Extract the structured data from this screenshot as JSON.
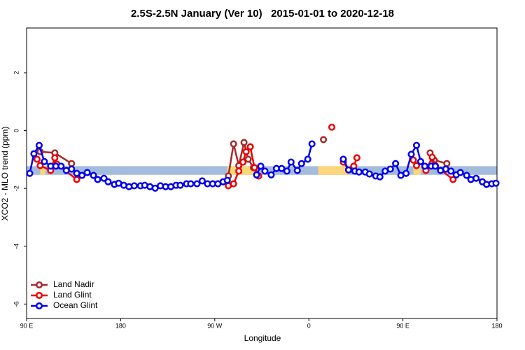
{
  "chart_data": {
    "type": "line",
    "title": "2.5S-2.5N January (Ver 10)   2015-01-01 to 2020-12-18",
    "x_label": "Longitude",
    "y_label": "XCO2 - MLO trend (ppm)",
    "xlim": [
      90,
      540
    ],
    "ylim": [
      -6.5,
      3.55
    ],
    "xticks": [
      {
        "value": 90,
        "label": "90 E"
      },
      180,
      {
        "value": 270,
        "label": "90 W"
      },
      {
        "value": 360,
        "label": "0"
      },
      {
        "value": 450,
        "label": "90 E"
      },
      {
        "value": 540,
        "label": "180"
      }
    ],
    "yticks": [
      2,
      0,
      -2,
      -4,
      -6
    ],
    "legend": "bottom-left",
    "bands": [
      {
        "color": "#a3bcdc",
        "ylim": [
          -1.53,
          -1.23
        ],
        "xlim": [
          90,
          540
        ]
      },
      {
        "color": "#fcd67a",
        "ylim": [
          -1.53,
          -1.23
        ],
        "xlim": [
          103,
          108
        ]
      },
      {
        "color": "#fcd67a",
        "ylim": [
          -1.53,
          -1.23
        ],
        "xlim": [
          282,
          309
        ]
      },
      {
        "color": "#fcd67a",
        "ylim": [
          -1.53,
          -1.23
        ],
        "xlim": [
          369,
          399
        ]
      },
      {
        "color": "#fcd67a",
        "ylim": [
          -1.53,
          -1.23
        ],
        "xlim": [
          460,
          467
        ]
      }
    ],
    "series": [
      {
        "name": "Land Nadir",
        "color": "#a52a2a",
        "x": [
          103,
          117,
          133,
          null,
          283,
          288,
          293,
          298,
          302,
          307,
          311,
          null,
          374,
          null,
          476,
          480,
          492
        ],
        "values": [
          -0.73,
          -0.77,
          -1.14,
          null,
          -1.57,
          -0.46,
          -1.21,
          -0.41,
          -0.99,
          -1.28,
          -1.55,
          null,
          -0.31,
          null,
          -0.77,
          -1.02,
          -1.14
        ]
      },
      {
        "name": "Land Glint",
        "color": "#ee0000",
        "x": [
          100,
          103,
          113,
          117,
          119,
          138,
          null,
          283,
          288,
          293,
          297,
          300,
          304,
          308,
          312,
          null,
          382,
          null,
          393,
          398,
          403,
          406,
          null,
          460,
          463,
          null,
          472,
          478,
          481,
          498
        ],
        "values": [
          -0.99,
          -1.21,
          -1.38,
          -0.94,
          -1.16,
          -1.69,
          null,
          -1.91,
          -1.84,
          -1.4,
          -1.09,
          -0.73,
          -0.56,
          -1.28,
          -1.57,
          null,
          0.12,
          null,
          -1.09,
          -1.36,
          -1.23,
          -0.94,
          null,
          -1.02,
          -1.21,
          null,
          -1.38,
          -0.92,
          -1.21,
          -1.69
        ]
      },
      {
        "name": "Ocean Glint",
        "color": "#0000ee",
        "x": [
          93,
          97,
          102,
          107,
          113,
          118,
          123,
          128,
          133,
          138,
          143,
          148,
          154,
          158,
          164,
          168,
          174,
          178,
          183,
          188,
          193,
          199,
          203,
          208,
          213,
          218,
          223,
          228,
          233,
          237,
          243,
          247,
          253,
          258,
          263,
          268,
          273,
          278,
          282,
          null,
          310,
          314,
          318,
          324,
          329,
          334,
          339,
          343,
          349,
          353,
          359,
          363,
          null,
          393,
          398,
          404,
          408,
          414,
          418,
          424,
          428,
          433,
          438,
          443,
          448,
          453,
          458,
          463,
          467,
          471,
          477,
          481,
          486,
          491,
          496,
          501,
          505,
          511,
          515,
          520,
          526,
          530,
          535,
          539
        ],
        "values": [
          -1.48,
          -0.8,
          -0.51,
          -1.07,
          -1.23,
          -1.23,
          -1.23,
          -1.38,
          -1.33,
          -1.48,
          -1.55,
          -1.45,
          -1.55,
          -1.69,
          -1.65,
          -1.77,
          -1.86,
          -1.82,
          -1.89,
          -1.94,
          -1.91,
          -1.91,
          -1.89,
          -1.94,
          -1.99,
          -1.91,
          -1.94,
          -1.94,
          -1.89,
          -1.89,
          -1.84,
          -1.84,
          -1.84,
          -1.74,
          -1.84,
          -1.84,
          -1.84,
          -1.77,
          -1.72,
          null,
          -1.53,
          -1.23,
          -1.4,
          -1.53,
          -1.31,
          -1.31,
          -1.4,
          -1.09,
          -1.38,
          -1.14,
          -0.99,
          -0.46,
          null,
          -0.99,
          -1.36,
          -1.4,
          -1.43,
          -1.43,
          -1.5,
          -1.57,
          -1.6,
          -1.4,
          -1.33,
          -1.14,
          -1.55,
          -1.48,
          -0.82,
          -0.51,
          -1.07,
          -1.23,
          -1.23,
          -1.23,
          -1.38,
          -1.33,
          -1.4,
          -1.53,
          -1.45,
          -1.55,
          -1.69,
          -1.65,
          -1.77,
          -1.86,
          -1.84,
          -1.82
        ]
      }
    ]
  }
}
